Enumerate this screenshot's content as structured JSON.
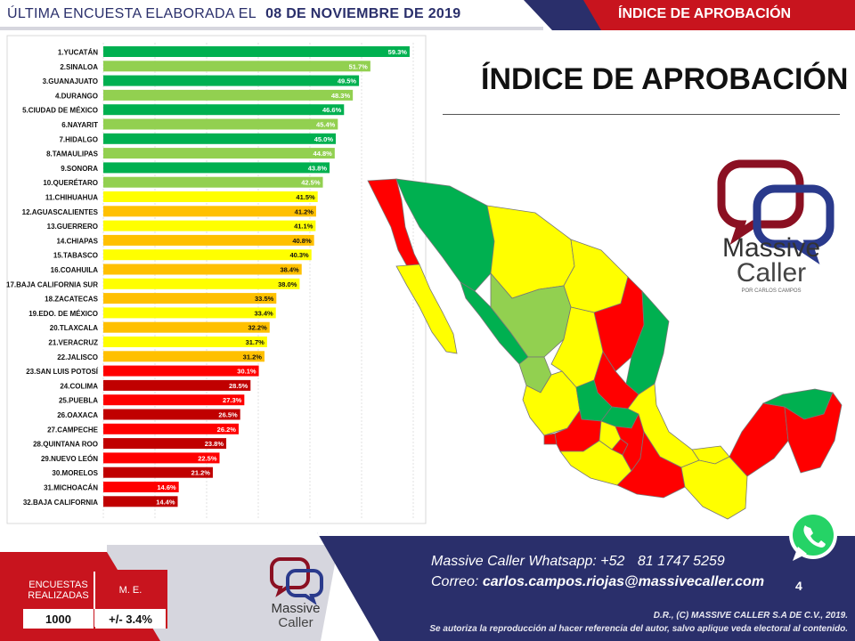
{
  "header": {
    "survey_label": "ÚLTIMA ENCUESTA ELABORADA EL",
    "survey_date": "08 DE NOVIEMBRE DE 2019",
    "right_title": "ÍNDICE DE APROBACIÓN"
  },
  "main_title": "ÍNDICE DE APROBACIÓN",
  "colors": {
    "navy": "#2a2f6b",
    "red_band": "#c8141e",
    "green_dark": "#00a650",
    "green_light": "#92d050",
    "yellow": "#ffff00",
    "orange": "#ffc000",
    "red": "#ff0000",
    "dark_red": "#c00000"
  },
  "chart_data": {
    "type": "bar",
    "orientation": "horizontal",
    "categories": [
      "1.YUCATÁN",
      "2.SINALOA",
      "3.GUANAJUATO",
      "4.DURANGO",
      "5.CIUDAD DE MÉXICO",
      "6.NAYARIT",
      "7.HIDALGO",
      "8.TAMAULIPAS",
      "9.SONORA",
      "10.QUERÉTARO",
      "11.CHIHUAHUA",
      "12.AGUASCALIENTES",
      "13.GUERRERO",
      "14.CHIAPAS",
      "15.TABASCO",
      "16.COAHUILA",
      "17.BAJA CALIFORNIA SUR",
      "18.ZACATECAS",
      "19.EDO. DE MÉXICO",
      "20.TLAXCALA",
      "21.VERACRUZ",
      "22.JALISCO",
      "23.SAN LUIS POTOSÍ",
      "24.COLIMA",
      "25.PUEBLA",
      "26.OAXACA",
      "27.CAMPECHE",
      "28.QUINTANA ROO",
      "29.NUEVO LEÓN",
      "30.MORELOS",
      "31.MICHOACÁN",
      "32.BAJA CALIFORNIA"
    ],
    "values": [
      59.3,
      51.7,
      49.5,
      48.3,
      46.6,
      45.4,
      45.0,
      44.8,
      43.8,
      42.5,
      41.5,
      41.2,
      41.1,
      40.8,
      40.3,
      38.4,
      38.0,
      33.5,
      33.4,
      32.2,
      31.7,
      31.2,
      30.1,
      28.5,
      27.3,
      26.5,
      26.2,
      23.8,
      22.5,
      21.2,
      14.6,
      14.4
    ],
    "data_labels": [
      "59.3%",
      "51.7%",
      "49.5%",
      "48.3%",
      "46.6%",
      "45.4%",
      "45.0%",
      "44.8%",
      "43.8%",
      "42.5%",
      "41.5%",
      "41.2%",
      "41.1%",
      "40.8%",
      "40.3%",
      "38.4%",
      "38.0%",
      "33.5%",
      "33.4%",
      "32.2%",
      "31.7%",
      "31.2%",
      "30.1%",
      "28.5%",
      "27.3%",
      "26.5%",
      "26.2%",
      "23.8%",
      "22.5%",
      "21.2%",
      "14.6%",
      "14.4%"
    ],
    "bar_colors": [
      "#00b050",
      "#92d050",
      "#00b050",
      "#92d050",
      "#00b050",
      "#92d050",
      "#00b050",
      "#92d050",
      "#00b050",
      "#92d050",
      "#ffff00",
      "#ffc000",
      "#ffff00",
      "#ffc000",
      "#ffff00",
      "#ffc000",
      "#ffff00",
      "#ffc000",
      "#ffff00",
      "#ffc000",
      "#ffff00",
      "#ffc000",
      "#ff0000",
      "#c00000",
      "#ff0000",
      "#c00000",
      "#ff0000",
      "#c00000",
      "#ff0000",
      "#c00000",
      "#ff0000",
      "#c00000"
    ],
    "xlim": [
      0,
      70
    ],
    "grid": true,
    "title": "",
    "xlabel": "",
    "ylabel": ""
  },
  "logo": {
    "line1": "Massive",
    "line2": "Caller",
    "tagline": "POR CARLOS CAMPOS"
  },
  "footer": {
    "whatsapp_label": "Massive Caller Whatsapp: +52",
    "whatsapp_number": "81 1747 5259",
    "email_label": "Correo:",
    "email": "carlos.campos.riojas@massivecaller.com",
    "page_number": "4",
    "copyright": "D.R., (C) MASSIVE CALLER S.A DE C.V., 2019.",
    "permission": "Se autoriza la reproducción al hacer referencia del autor, salvo aplique veda electoral al contenido."
  },
  "stats": {
    "surveys_header": "ENCUESTAS REALIZADAS",
    "me_header": "M. E.",
    "surveys_value": "1000",
    "me_value": "+/- 3.4%"
  },
  "icons": {
    "whatsapp": "whatsapp-icon",
    "logo": "massive-caller-logo"
  }
}
